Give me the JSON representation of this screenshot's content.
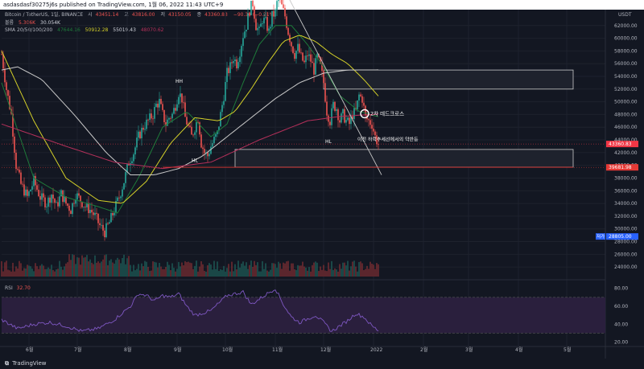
{
  "header": {
    "text": "asdasdasf30275j6s published on TradingView.com, 1월 06, 2022 11:43 UTC+9"
  },
  "legend": {
    "symbol": "Bitcoin / TetherUS, 1일, BINANCE",
    "ohlc": [
      {
        "k": "시",
        "v": "43451.14"
      },
      {
        "k": "고",
        "v": "43816.00"
      },
      {
        "k": "저",
        "v": "43150.05"
      },
      {
        "k": "종",
        "v": "43360.83"
      },
      {
        "k": "",
        "v": "−90.30 (−0.21%)"
      }
    ],
    "volume_label": "볼륨",
    "volume_values": [
      "5.306K",
      "30.054K"
    ],
    "sma_label": "SMA 20/50/100/200",
    "sma_values": [
      "47644.16",
      "50912.28",
      "55019.43",
      "48070.62"
    ],
    "rsi_label": "RSI",
    "rsi_value": "32.70"
  },
  "footer": {
    "brand": "TradingView"
  },
  "colors": {
    "bg": "#131722",
    "up": "#26a69a",
    "down": "#ef5350",
    "sma20": "#1e7a3a",
    "sma50": "#d4d029",
    "sma100": "#c9c9c9",
    "sma200": "#b4305a",
    "rsi": "#7e57c2",
    "rsi_band": "#2a1f3d",
    "price_tag": "#f23645",
    "support_tag": "#e53935"
  },
  "chart_data": [
    {
      "type": "candlestick",
      "title": "",
      "symbol": "Bitcoin / TetherUS, 1일, BINANCE",
      "x_tick_labels": [
        "6월",
        "7월",
        "8월",
        "9월",
        "10월",
        "11월",
        "12월",
        "2022",
        "2월",
        "3월",
        "4월",
        "5월"
      ],
      "x_tick_days": [
        17,
        47,
        78,
        109,
        139,
        170,
        200,
        231,
        262,
        290,
        321,
        351
      ],
      "y_axis_title": "USDT",
      "y_tick_labels": [
        "62000.00",
        "60000.00",
        "58000.00",
        "56000.00",
        "54000.00",
        "52000.00",
        "50000.00",
        "48000.00",
        "46000.00",
        "44000.00",
        "42000.00",
        "40000.00",
        "38000.00",
        "36000.00",
        "34000.00",
        "32000.00",
        "30000.00",
        "28000.00",
        "26000.00",
        "24000.00"
      ],
      "ylim": [
        22500,
        64500
      ],
      "price_tags": [
        {
          "value": 43360.83,
          "label": "43360.83"
        },
        {
          "value": 39681.98,
          "label": "39681.98"
        },
        {
          "value": 28805.0,
          "label": "28805.00",
          "tag": "저가"
        }
      ],
      "price_path_anchors": [
        [
          0,
          57500
        ],
        [
          3,
          52000
        ],
        [
          6,
          48000
        ],
        [
          9,
          40000
        ],
        [
          12,
          37000
        ],
        [
          16,
          35000
        ],
        [
          20,
          37500
        ],
        [
          24,
          35000
        ],
        [
          28,
          34000
        ],
        [
          31,
          35500
        ],
        [
          34,
          33500
        ],
        [
          37,
          35500
        ],
        [
          40,
          34000
        ],
        [
          43,
          33000
        ],
        [
          46,
          35500
        ],
        [
          49,
          34500
        ],
        [
          52,
          33500
        ],
        [
          55,
          33000
        ],
        [
          58,
          32000
        ],
        [
          61,
          30500
        ],
        [
          64,
          29500
        ],
        [
          67,
          31000
        ],
        [
          70,
          33000
        ],
        [
          73,
          35000
        ],
        [
          76,
          37500
        ],
        [
          79,
          40500
        ],
        [
          82,
          42000
        ],
        [
          85,
          44500
        ],
        [
          88,
          46000
        ],
        [
          91,
          47000
        ],
        [
          94,
          48000
        ],
        [
          96,
          49500
        ],
        [
          98,
          50000
        ],
        [
          100,
          48000
        ],
        [
          102,
          46500
        ],
        [
          104,
          47500
        ],
        [
          106,
          48000
        ],
        [
          108,
          49500
        ],
        [
          110,
          51500
        ],
        [
          112,
          50500
        ],
        [
          114,
          47500
        ],
        [
          116,
          46000
        ],
        [
          118,
          44500
        ],
        [
          120,
          46000
        ],
        [
          122,
          47500
        ],
        [
          124,
          43500
        ],
        [
          126,
          42000
        ],
        [
          128,
          41500
        ],
        [
          130,
          43000
        ],
        [
          132,
          44000
        ],
        [
          134,
          45000
        ],
        [
          136,
          48000
        ],
        [
          138,
          51000
        ],
        [
          140,
          54500
        ],
        [
          142,
          55500
        ],
        [
          144,
          57000
        ],
        [
          146,
          56000
        ],
        [
          148,
          58000
        ],
        [
          150,
          60500
        ],
        [
          152,
          62000
        ],
        [
          154,
          64500
        ],
        [
          156,
          65500
        ],
        [
          158,
          62000
        ],
        [
          160,
          61000
        ],
        [
          162,
          63000
        ],
        [
          164,
          62500
        ],
        [
          166,
          61000
        ],
        [
          168,
          63500
        ],
        [
          170,
          64000
        ],
        [
          172,
          67000
        ],
        [
          174,
          65000
        ],
        [
          176,
          63500
        ],
        [
          178,
          61000
        ],
        [
          180,
          59000
        ],
        [
          182,
          57500
        ],
        [
          184,
          58500
        ],
        [
          186,
          57000
        ],
        [
          188,
          56000
        ],
        [
          190,
          57500
        ],
        [
          192,
          56500
        ],
        [
          194,
          55000
        ],
        [
          196,
          57000
        ],
        [
          198,
          55500
        ],
        [
          200,
          53000
        ],
        [
          202,
          48500
        ],
        [
          204,
          47000
        ],
        [
          206,
          49500
        ],
        [
          208,
          49000
        ],
        [
          210,
          47000
        ],
        [
          212,
          48000
        ],
        [
          214,
          47000
        ],
        [
          216,
          46500
        ],
        [
          218,
          48000
        ],
        [
          220,
          48500
        ],
        [
          222,
          51000
        ],
        [
          224,
          50500
        ],
        [
          226,
          47500
        ],
        [
          228,
          47000
        ],
        [
          230,
          46500
        ],
        [
          232,
          44500
        ],
        [
          234,
          43360
        ]
      ],
      "sma_series": [
        {
          "name": "SMA 20",
          "color_key": "sma20",
          "anchors": [
            [
              0,
              53000
            ],
            [
              20,
              38000
            ],
            [
              40,
              35000
            ],
            [
              60,
              33500
            ],
            [
              72,
              32500
            ],
            [
              85,
              38000
            ],
            [
              100,
              46000
            ],
            [
              115,
              48500
            ],
            [
              130,
              44500
            ],
            [
              140,
              46500
            ],
            [
              150,
              53000
            ],
            [
              160,
              59000
            ],
            [
              170,
              62000
            ],
            [
              180,
              62000
            ],
            [
              190,
              59000
            ],
            [
              200,
              55500
            ],
            [
              210,
              51000
            ],
            [
              222,
              48500
            ],
            [
              234,
              47644
            ]
          ]
        },
        {
          "name": "SMA 50",
          "color_key": "sma50",
          "anchors": [
            [
              0,
              58000
            ],
            [
              20,
              47000
            ],
            [
              40,
              38000
            ],
            [
              60,
              34500
            ],
            [
              75,
              34000
            ],
            [
              90,
              37500
            ],
            [
              105,
              43500
            ],
            [
              120,
              47500
            ],
            [
              135,
              47000
            ],
            [
              145,
              48500
            ],
            [
              155,
              52000
            ],
            [
              165,
              56000
            ],
            [
              175,
              59500
            ],
            [
              185,
              60500
            ],
            [
              195,
              59500
            ],
            [
              205,
              57500
            ],
            [
              215,
              56000
            ],
            [
              225,
              53500
            ],
            [
              234,
              50912
            ]
          ]
        },
        {
          "name": "SMA 100",
          "color_key": "sma100",
          "anchors": [
            [
              0,
              55000
            ],
            [
              10,
              55500
            ],
            [
              25,
              53500
            ],
            [
              45,
              48000
            ],
            [
              65,
              42000
            ],
            [
              80,
              38500
            ],
            [
              95,
              38500
            ],
            [
              110,
              39500
            ],
            [
              125,
              41500
            ],
            [
              140,
              44500
            ],
            [
              155,
              47500
            ],
            [
              170,
              50500
            ],
            [
              185,
              53000
            ],
            [
              200,
              54500
            ],
            [
              215,
              55000
            ],
            [
              234,
              55019
            ]
          ]
        },
        {
          "name": "SMA 200",
          "color_key": "sma200",
          "anchors": [
            [
              0,
              46500
            ],
            [
              40,
              43000
            ],
            [
              70,
              40500
            ],
            [
              100,
              39500
            ],
            [
              130,
              40500
            ],
            [
              160,
              44000
            ],
            [
              190,
              47000
            ],
            [
              210,
              47700
            ],
            [
              234,
              48070
            ]
          ]
        }
      ],
      "annotations": [
        {
          "text": "HH",
          "kind": "label",
          "day": 108,
          "price": 53000
        },
        {
          "text": "HL",
          "kind": "label",
          "day": 118,
          "price": 40500
        },
        {
          "text": "HL",
          "kind": "label",
          "day": 201,
          "price": 43500
        },
        {
          "text": "2차 데드크로스",
          "kind": "callout",
          "day": 229,
          "price": 48000
        },
        {
          "text": "이전 하락추세선에서의 약반등",
          "kind": "callout",
          "day": 221,
          "price": 43800
        }
      ],
      "zones": [
        {
          "from_day": 200,
          "to_day": 355,
          "low": 52000,
          "high": 55000
        },
        {
          "from_day": 145,
          "to_day": 355,
          "low": 39700,
          "high": 42500
        }
      ],
      "trendlines": [
        {
          "from": [
            178,
            66500
          ],
          "to": [
            236,
            38500
          ]
        },
        {
          "from": [
            100,
            39700
          ],
          "to": [
            355,
            39700
          ],
          "style": "support"
        }
      ]
    },
    {
      "type": "bar",
      "title": "",
      "series": [
        {
          "name": "볼륨",
          "values": []
        }
      ],
      "note": ""
    },
    {
      "type": "line",
      "title": "",
      "series": [
        {
          "name": "RSI",
          "anchors": [
            [
              0,
              45
            ],
            [
              10,
              35
            ],
            [
              20,
              40
            ],
            [
              30,
              42
            ],
            [
              40,
              38
            ],
            [
              50,
              32
            ],
            [
              60,
              35
            ],
            [
              70,
              45
            ],
            [
              80,
              60
            ],
            [
              85,
              74
            ],
            [
              90,
              72
            ],
            [
              95,
              66
            ],
            [
              100,
              72
            ],
            [
              105,
              70
            ],
            [
              110,
              74
            ],
            [
              115,
              60
            ],
            [
              120,
              50
            ],
            [
              130,
              55
            ],
            [
              140,
              72
            ],
            [
              150,
              76
            ],
            [
              155,
              62
            ],
            [
              160,
              68
            ],
            [
              165,
              74
            ],
            [
              170,
              80
            ],
            [
              175,
              62
            ],
            [
              180,
              48
            ],
            [
              185,
              42
            ],
            [
              190,
              46
            ],
            [
              195,
              50
            ],
            [
              200,
              42
            ],
            [
              205,
              32
            ],
            [
              210,
              38
            ],
            [
              215,
              44
            ],
            [
              220,
              52
            ],
            [
              225,
              48
            ],
            [
              230,
              38
            ],
            [
              234,
              33
            ]
          ]
        }
      ],
      "y_tick_labels": [
        "80.00",
        "60.00",
        "40.00",
        "20.00"
      ],
      "ylim": [
        16,
        86
      ],
      "bands": [
        30,
        70
      ]
    }
  ]
}
